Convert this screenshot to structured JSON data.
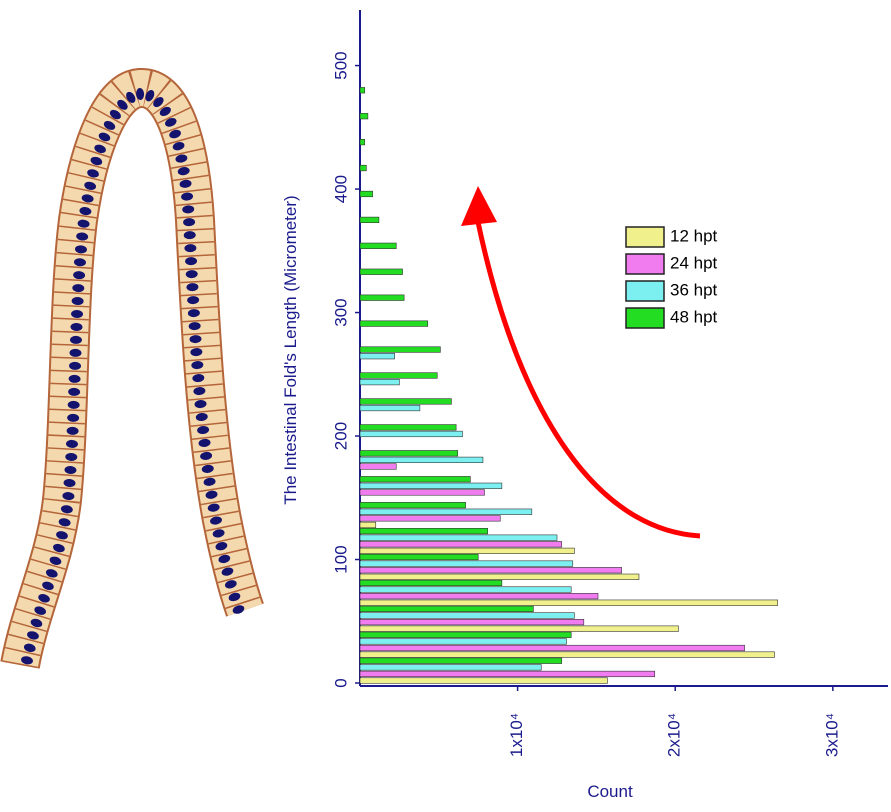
{
  "chart_data": {
    "type": "hbar",
    "y_label": "The Intestinal Fold's Length (Micrometer)",
    "x_label": "Count",
    "y": [
      10,
      31,
      52,
      73,
      94,
      115,
      136,
      157,
      178,
      199,
      220,
      241,
      262,
      283,
      304,
      325,
      346,
      367,
      388,
      409,
      430,
      451,
      472
    ],
    "series": [
      {
        "name": "12 hpt",
        "color": "#f0f08c",
        "values": [
          15700,
          26300,
          20200,
          26500,
          17700,
          13600,
          1000,
          null,
          null,
          null,
          null,
          null,
          null,
          null,
          null,
          null,
          null,
          null,
          null,
          null,
          null,
          null,
          null
        ]
      },
      {
        "name": "24 hpt",
        "color": "#f07cf0",
        "values": [
          18700,
          24400,
          14200,
          15100,
          16600,
          12800,
          8900,
          7900,
          2300,
          null,
          null,
          null,
          null,
          null,
          null,
          null,
          null,
          null,
          null,
          null,
          null,
          null,
          null
        ]
      },
      {
        "name": "36 hpt",
        "color": "#7cf0f0",
        "values": [
          11500,
          13100,
          13600,
          13400,
          13500,
          12500,
          10900,
          9000,
          7800,
          6500,
          3800,
          2500,
          2200,
          null,
          null,
          null,
          null,
          null,
          null,
          null,
          null,
          null,
          null
        ]
      },
      {
        "name": "48 hpt",
        "color": "#22dd22",
        "values": [
          12800,
          13400,
          11000,
          9000,
          7500,
          8100,
          6700,
          7000,
          6200,
          6100,
          5800,
          4900,
          5100,
          4300,
          2800,
          2700,
          2300,
          1200,
          800,
          400,
          300,
          500,
          300
        ]
      }
    ],
    "xlim": [
      0,
      33500
    ],
    "xticks": [
      {
        "value": 10000,
        "label": "1x10⁴"
      },
      {
        "value": 20000,
        "label": "2x10⁴"
      },
      {
        "value": 30000,
        "label": "3x10⁴"
      }
    ],
    "ylim": [
      0,
      545
    ],
    "yticks": [
      0,
      100,
      200,
      300,
      400,
      500
    ]
  }
}
